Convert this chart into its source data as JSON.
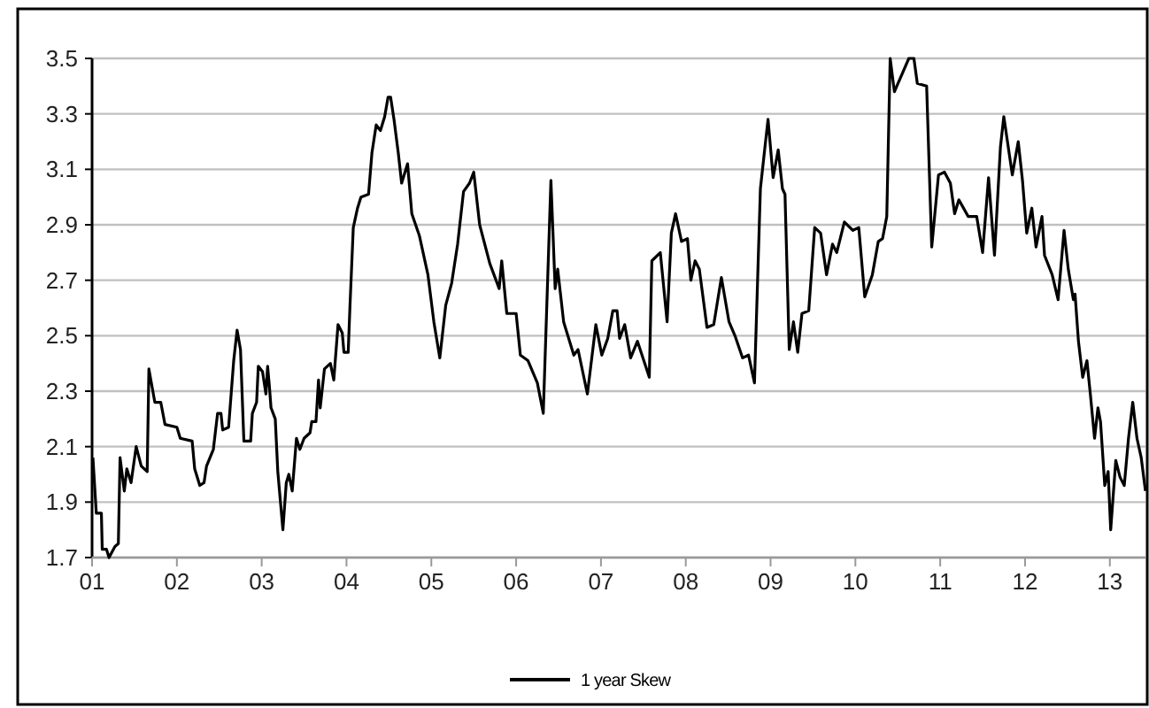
{
  "chart_data": {
    "type": "line",
    "xlim": [
      2001,
      2013.42
    ],
    "ylim": [
      1.7,
      3.5
    ],
    "xticks": [
      {
        "value": 2001,
        "label": "01"
      },
      {
        "value": 2002,
        "label": "02"
      },
      {
        "value": 2003,
        "label": "03"
      },
      {
        "value": 2004,
        "label": "04"
      },
      {
        "value": 2005,
        "label": "05"
      },
      {
        "value": 2006,
        "label": "06"
      },
      {
        "value": 2007,
        "label": "07"
      },
      {
        "value": 2008,
        "label": "08"
      },
      {
        "value": 2009,
        "label": "09"
      },
      {
        "value": 2010,
        "label": "10"
      },
      {
        "value": 2011,
        "label": "11"
      },
      {
        "value": 2012,
        "label": "12"
      },
      {
        "value": 2013,
        "label": "13"
      }
    ],
    "yticks": [
      {
        "value": 1.7,
        "label": "1.7"
      },
      {
        "value": 1.9,
        "label": "1.9"
      },
      {
        "value": 2.1,
        "label": "2.1"
      },
      {
        "value": 2.3,
        "label": "2.3"
      },
      {
        "value": 2.5,
        "label": "2.5"
      },
      {
        "value": 2.7,
        "label": "2.7"
      },
      {
        "value": 2.9,
        "label": "2.9"
      },
      {
        "value": 3.1,
        "label": "3.1"
      },
      {
        "value": 3.3,
        "label": "3.3"
      },
      {
        "value": 3.5,
        "label": "3.5"
      }
    ],
    "grid": "y",
    "legend": "bottom",
    "marker": "none",
    "line_style": "solid",
    "series": [
      {
        "name": "1 year Skew",
        "color": "#000000",
        "x": [
          2001.01,
          2001.05,
          2001.11,
          2001.12,
          2001.17,
          2001.2,
          2001.27,
          2001.31,
          2001.33,
          2001.38,
          2001.41,
          2001.46,
          2001.52,
          2001.58,
          2001.65,
          2001.67,
          2001.74,
          2001.81,
          2001.86,
          2002,
          2002.04,
          2002.18,
          2002.21,
          2002.27,
          2002.32,
          2002.35,
          2002.43,
          2002.48,
          2002.52,
          2002.54,
          2002.61,
          2002.67,
          2002.71,
          2002.75,
          2002.79,
          2002.87,
          2002.89,
          2002.94,
          2002.96,
          2003.01,
          2003.05,
          2003.07,
          2003.09,
          2003.11,
          2003.16,
          2003.19,
          2003.21,
          2003.25,
          2003.29,
          2003.32,
          2003.36,
          2003.41,
          2003.45,
          2003.5,
          2003.57,
          2003.59,
          2003.64,
          2003.67,
          2003.69,
          2003.74,
          2003.81,
          2003.85,
          2003.9,
          2003.95,
          2003.97,
          2004.02,
          2004.04,
          2004.08,
          2004.13,
          2004.17,
          2004.26,
          2004.3,
          2004.35,
          2004.4,
          2004.45,
          2004.49,
          2004.52,
          2004.56,
          2004.61,
          2004.65,
          2004.72,
          2004.77,
          2004.86,
          2004.96,
          2005.03,
          2005.1,
          2005.17,
          2005.24,
          2005.31,
          2005.38,
          2005.45,
          2005.5,
          2005.57,
          2005.69,
          2005.8,
          2005.83,
          2005.89,
          2006,
          2006.05,
          2006.14,
          2006.25,
          2006.32,
          2006.41,
          2006.46,
          2006.49,
          2006.56,
          2006.68,
          2006.73,
          2006.84,
          2006.94,
          2007.01,
          2007.08,
          2007.14,
          2007.19,
          2007.22,
          2007.28,
          2007.35,
          2007.43,
          2007.57,
          2007.6,
          2007.7,
          2007.78,
          2007.83,
          2007.88,
          2007.95,
          2008.02,
          2008.06,
          2008.11,
          2008.16,
          2008.25,
          2008.33,
          2008.42,
          2008.51,
          2008.58,
          2008.67,
          2008.74,
          2008.81,
          2008.88,
          2008.93,
          2008.97,
          2009.03,
          2009.09,
          2009.14,
          2009.17,
          2009.22,
          2009.27,
          2009.32,
          2009.37,
          2009.45,
          2009.52,
          2009.59,
          2009.66,
          2009.73,
          2009.78,
          2009.87,
          2009.97,
          2010.04,
          2010.11,
          2010.2,
          2010.27,
          2010.32,
          2010.37,
          2010.41,
          2010.46,
          2010.63,
          2010.69,
          2010.73,
          2010.84,
          2010.9,
          2010.98,
          2011.05,
          2011.12,
          2011.17,
          2011.22,
          2011.33,
          2011.43,
          2011.5,
          2011.57,
          2011.64,
          2011.71,
          2011.75,
          2011.85,
          2011.92,
          2011.97,
          2012.02,
          2012.08,
          2012.13,
          2012.2,
          2012.23,
          2012.32,
          2012.39,
          2012.46,
          2012.51,
          2012.57,
          2012.59,
          2012.63,
          2012.68,
          2012.73,
          2012.77,
          2012.82,
          2012.86,
          2012.89,
          2012.94,
          2012.98,
          2013.01,
          2013.07,
          2013.12,
          2013.17,
          2013.22,
          2013.27,
          2013.32,
          2013.37,
          2013.42
        ],
        "values": [
          2.06,
          1.86,
          1.86,
          1.73,
          1.73,
          1.7,
          1.74,
          1.75,
          2.06,
          1.94,
          2.02,
          1.97,
          2.1,
          2.03,
          2.01,
          2.38,
          2.26,
          2.26,
          2.18,
          2.17,
          2.13,
          2.12,
          2.02,
          1.96,
          1.97,
          2.03,
          2.09,
          2.22,
          2.22,
          2.16,
          2.17,
          2.41,
          2.52,
          2.45,
          2.12,
          2.12,
          2.22,
          2.26,
          2.39,
          2.37,
          2.29,
          2.39,
          2.32,
          2.24,
          2.2,
          2.01,
          1.94,
          1.8,
          1.97,
          2,
          1.94,
          2.13,
          2.09,
          2.13,
          2.15,
          2.19,
          2.19,
          2.34,
          2.24,
          2.38,
          2.4,
          2.34,
          2.54,
          2.51,
          2.44,
          2.44,
          2.6,
          2.89,
          2.96,
          3,
          3.01,
          3.16,
          3.26,
          3.24,
          3.29,
          3.36,
          3.36,
          3.28,
          3.16,
          3.05,
          3.12,
          2.94,
          2.86,
          2.72,
          2.55,
          2.42,
          2.61,
          2.69,
          2.83,
          3.02,
          3.05,
          3.09,
          2.9,
          2.76,
          2.67,
          2.77,
          2.58,
          2.58,
          2.43,
          2.41,
          2.33,
          2.22,
          3.06,
          2.67,
          2.74,
          2.55,
          2.43,
          2.45,
          2.29,
          2.54,
          2.43,
          2.49,
          2.59,
          2.59,
          2.49,
          2.54,
          2.42,
          2.48,
          2.35,
          2.77,
          2.8,
          2.55,
          2.87,
          2.94,
          2.84,
          2.85,
          2.7,
          2.77,
          2.74,
          2.53,
          2.54,
          2.71,
          2.55,
          2.5,
          2.42,
          2.43,
          2.33,
          3.03,
          3.17,
          3.28,
          3.07,
          3.17,
          3.03,
          3.01,
          2.45,
          2.55,
          2.44,
          2.58,
          2.59,
          2.89,
          2.87,
          2.72,
          2.83,
          2.8,
          2.91,
          2.88,
          2.89,
          2.64,
          2.72,
          2.84,
          2.85,
          2.93,
          3.5,
          3.38,
          3.5,
          3.5,
          3.41,
          3.4,
          2.82,
          3.08,
          3.09,
          3.05,
          2.94,
          2.99,
          2.93,
          2.93,
          2.8,
          3.07,
          2.79,
          3.18,
          3.29,
          3.08,
          3.2,
          3.06,
          2.87,
          2.96,
          2.82,
          2.93,
          2.79,
          2.72,
          2.63,
          2.88,
          2.74,
          2.63,
          2.65,
          2.48,
          2.35,
          2.41,
          2.29,
          2.13,
          2.24,
          2.19,
          1.96,
          2.01,
          1.8,
          2.05,
          1.99,
          1.96,
          2.13,
          2.26,
          2.13,
          2.06,
          1.94
        ]
      }
    ]
  }
}
